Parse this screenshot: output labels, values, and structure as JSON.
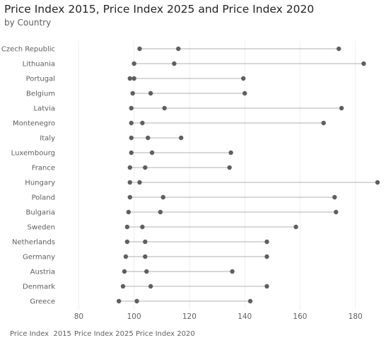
{
  "chart_data": {
    "type": "dot-plot",
    "title": "Price Index 2015, Price Index 2025 and Price Index 2020",
    "subtitle": "by Country",
    "xlim": [
      73,
      188
    ],
    "xticks": [
      80,
      100,
      120,
      140,
      160,
      180
    ],
    "grid": "vertical",
    "legend_position": "bottom-left",
    "legend_labels": [
      "Price Index  2015",
      "Price Index 2025",
      "Price Index 2020"
    ],
    "dot_color": "#5f5f5f",
    "line_color": "#b3b0ad",
    "categories": [
      "Czech Republic",
      "Lithuania",
      "Portugal",
      "Belgium",
      "Latvia",
      "Montenegro",
      "Italy",
      "Luxembourg",
      "France",
      "Hungary",
      "Poland",
      "Bulgaria",
      "Sweden",
      "Netherlands",
      "Germany",
      "Austria",
      "Denmark",
      "Greece"
    ],
    "series": [
      {
        "name": "Price Index  2015",
        "values": [
          102,
          100,
          98.5,
          99.5,
          99,
          99,
          99,
          99,
          98.5,
          98.5,
          98.5,
          98,
          97.5,
          97.5,
          97,
          96.5,
          96,
          94.5
        ]
      },
      {
        "name": "Price Index 2025",
        "values": [
          174,
          183,
          139.5,
          140,
          175,
          168.5,
          117,
          135,
          134.5,
          188,
          172.5,
          173,
          158.5,
          148,
          148,
          135.5,
          148,
          142
        ]
      },
      {
        "name": "Price Index 2020",
        "values": [
          116,
          114.5,
          100,
          106,
          111,
          103,
          105,
          106.5,
          104,
          102,
          110.5,
          109.5,
          103,
          104,
          104,
          104.5,
          106,
          101
        ]
      }
    ]
  }
}
